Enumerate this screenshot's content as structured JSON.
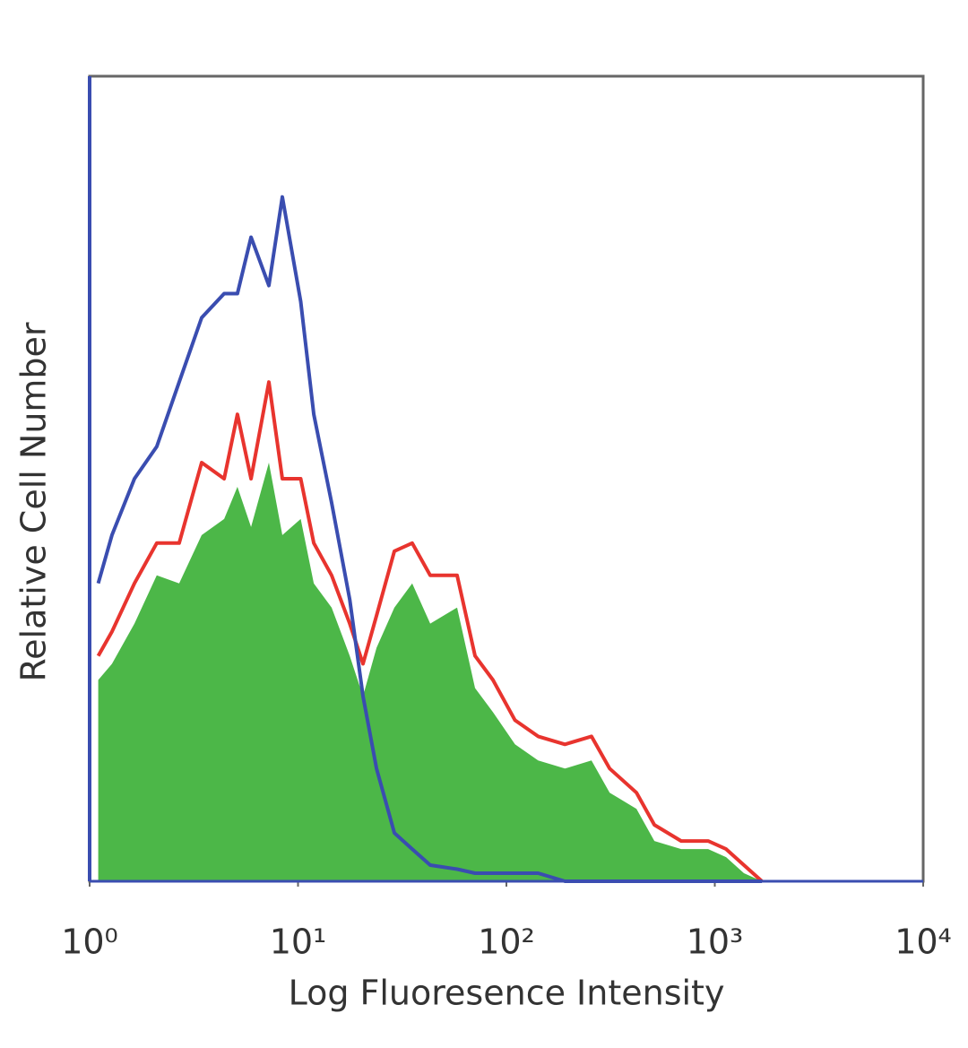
{
  "chart_data": {
    "type": "histogram-line",
    "x_label": "Log Fluoresence Intensity",
    "y_label": "Relative Cell Number",
    "x_scale": "log",
    "xlim": [
      1,
      10000
    ],
    "xticks": [
      {
        "value": 1,
        "label": "10⁰"
      },
      {
        "value": 10,
        "label": "10¹"
      },
      {
        "value": 100,
        "label": "10²"
      },
      {
        "value": 1000,
        "label": "10³"
      },
      {
        "value": 10000,
        "label": "10⁴"
      }
    ],
    "ylim": [
      0,
      100
    ],
    "x": [
      1.1,
      1.28,
      1.64,
      2.1,
      2.69,
      3.45,
      4.42,
      5.12,
      5.95,
      7.25,
      8.41,
      10.3,
      11.9,
      14.5,
      17.7,
      20.5,
      23.8,
      29,
      35.3,
      43.1,
      58,
      70.7,
      86.2,
      110,
      142,
      191,
      256,
      313,
      421,
      513,
      690,
      929,
      1133,
      1380,
      1683
    ],
    "series": [
      {
        "color": "#4cb748",
        "fill": true,
        "values": [
          25,
          27,
          32,
          38,
          37,
          43,
          45,
          49,
          44,
          52,
          43,
          45,
          37,
          34,
          28,
          23,
          29,
          34,
          37,
          32,
          34,
          24,
          21,
          17,
          15,
          14,
          15,
          11,
          9,
          5,
          4,
          4,
          3,
          1,
          0
        ]
      },
      {
        "color": "#e8342e",
        "fill": false,
        "values": [
          28,
          31,
          37,
          42,
          42,
          52,
          50,
          58,
          50,
          62,
          50,
          50,
          42,
          38,
          32,
          27,
          33,
          41,
          42,
          38,
          38,
          28,
          25,
          20,
          18,
          17,
          18,
          14,
          11,
          7,
          5,
          5,
          4,
          2,
          0
        ]
      },
      {
        "color": "#3a4db0",
        "fill": false,
        "values": [
          37,
          43,
          50,
          54,
          62,
          70,
          73,
          73,
          80,
          74,
          85,
          72,
          58,
          47,
          35,
          23,
          14,
          6,
          4,
          2,
          1.5,
          1,
          1,
          1,
          1,
          0,
          0,
          0,
          0,
          0,
          0,
          0,
          0,
          0,
          0
        ]
      }
    ]
  }
}
